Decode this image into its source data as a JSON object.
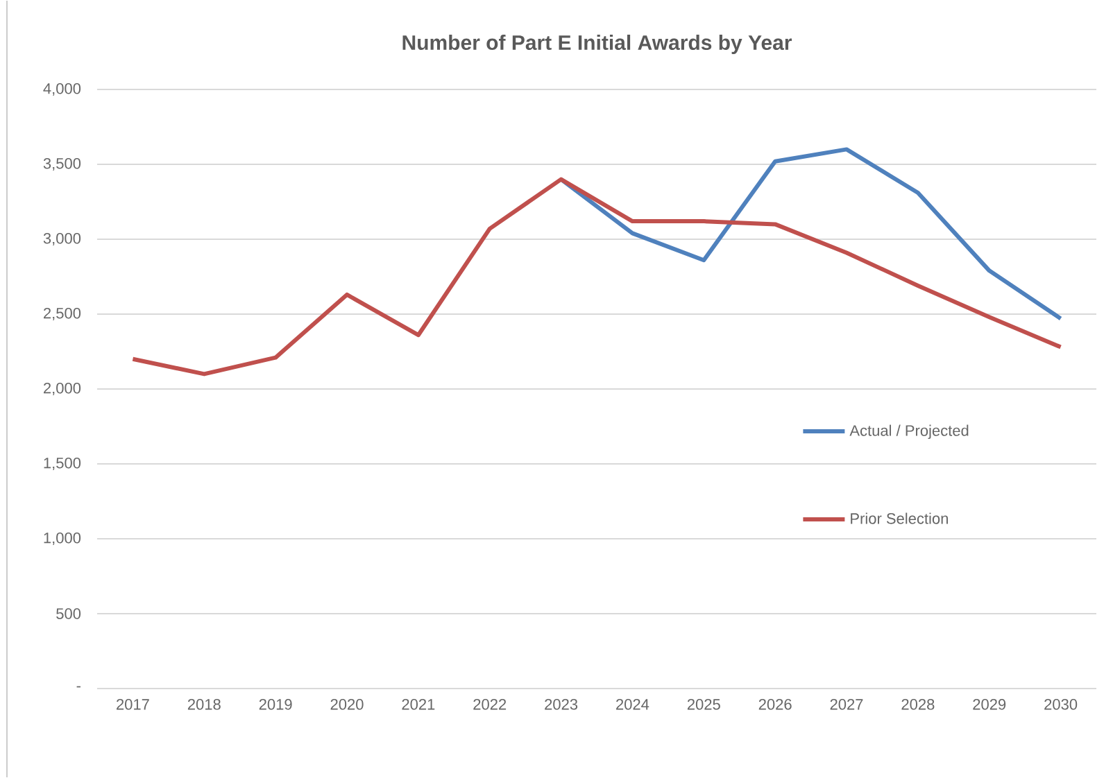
{
  "chart_data": {
    "type": "line",
    "title": "Number of Part  E Initial Awards by Year",
    "categories": [
      "2017",
      "2018",
      "2019",
      "2020",
      "2021",
      "2022",
      "2023",
      "2024",
      "2025",
      "2026",
      "2027",
      "2028",
      "2029",
      "2030"
    ],
    "series": [
      {
        "name": "Actual / Projected",
        "color": "#4f81bd",
        "values": [
          null,
          null,
          null,
          null,
          null,
          null,
          3400,
          3040,
          2860,
          3520,
          3600,
          3310,
          2790,
          2470
        ]
      },
      {
        "name": "Prior Selection",
        "color": "#c0504d",
        "values": [
          2200,
          2100,
          2210,
          2630,
          2360,
          3070,
          3400,
          3120,
          3120,
          3100,
          2910,
          2690,
          2480,
          2280
        ]
      }
    ],
    "ylim": [
      0,
      4000
    ],
    "yticks": [
      {
        "value": 0,
        "label": "-"
      },
      {
        "value": 500,
        "label": "500"
      },
      {
        "value": 1000,
        "label": "1,000"
      },
      {
        "value": 1500,
        "label": "1,500"
      },
      {
        "value": 2000,
        "label": "2,000"
      },
      {
        "value": 2500,
        "label": "2,500"
      },
      {
        "value": 3000,
        "label": "3,000"
      },
      {
        "value": 3500,
        "label": "3,500"
      },
      {
        "value": 4000,
        "label": "4,000"
      }
    ],
    "grid": "y",
    "legend": "right",
    "marker": "none",
    "line_style": "solid"
  }
}
